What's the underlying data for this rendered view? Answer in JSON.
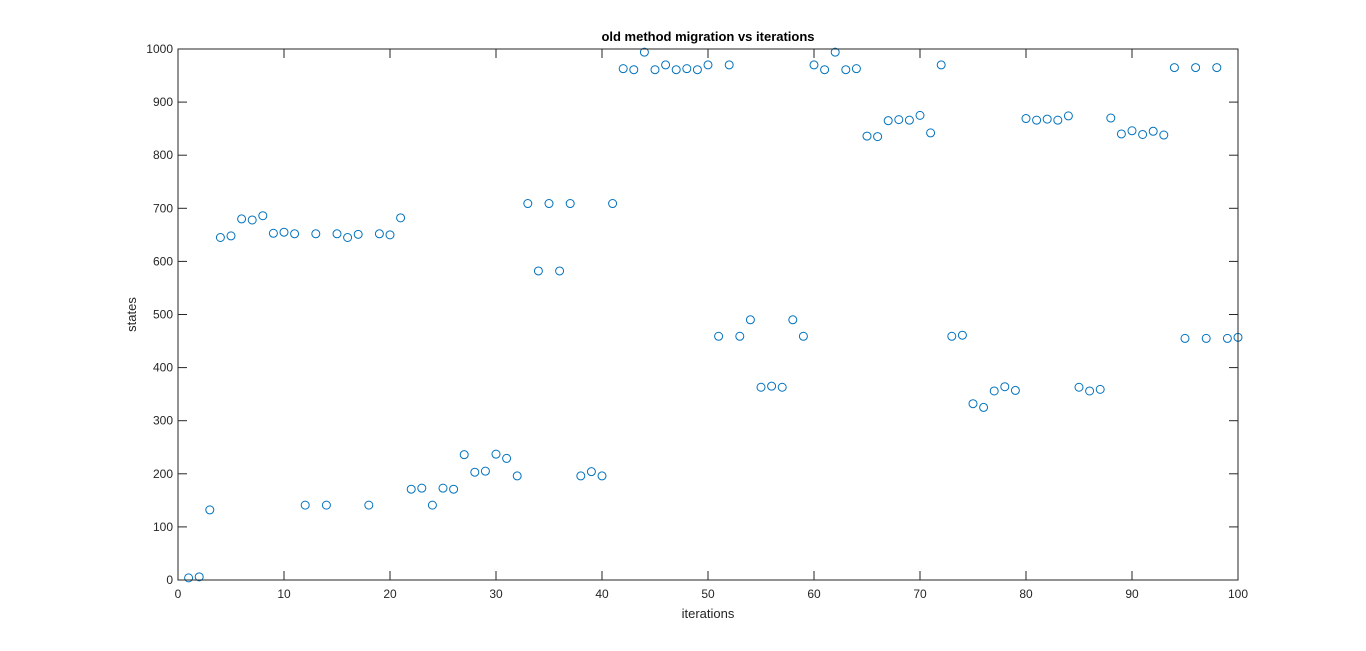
{
  "window": {
    "background": "#ffffff"
  },
  "chart_data": {
    "type": "scatter",
    "title": "old method migration vs iterations",
    "xlabel": "iterations",
    "ylabel": "states",
    "xlim": [
      0,
      100
    ],
    "ylim": [
      0,
      1000
    ],
    "xticks": [
      0,
      10,
      20,
      30,
      40,
      50,
      60,
      70,
      80,
      90,
      100
    ],
    "yticks": [
      0,
      100,
      200,
      300,
      400,
      500,
      600,
      700,
      800,
      900,
      1000
    ],
    "grid": false,
    "legend": "none",
    "marker": "circle-open",
    "marker_color": "#0072BD",
    "box": true,
    "series": [
      {
        "x": [
          1,
          2,
          3,
          4,
          5,
          6,
          7,
          8,
          9,
          10,
          11,
          12,
          13,
          14,
          15,
          16,
          17,
          18,
          19,
          20,
          21,
          22,
          23,
          24,
          25,
          26,
          27,
          28,
          29,
          30,
          31,
          32,
          33,
          34,
          35,
          36,
          37,
          38,
          39,
          40,
          41,
          42,
          43,
          44,
          45,
          46,
          47,
          48,
          49,
          50,
          51,
          52,
          53,
          54,
          55,
          56,
          57,
          58,
          59,
          60,
          61,
          62,
          63,
          64,
          65,
          66,
          67,
          68,
          69,
          70,
          71,
          72,
          73,
          74,
          75,
          76,
          77,
          78,
          79,
          80,
          81,
          82,
          83,
          84,
          85,
          86,
          87,
          88,
          89,
          90,
          91,
          92,
          93,
          94,
          95,
          96,
          97,
          98,
          99,
          100
        ],
        "y": [
          4,
          6,
          132,
          645,
          648,
          680,
          678,
          686,
          653,
          655,
          652,
          141,
          652,
          141,
          652,
          645,
          651,
          141,
          652,
          650,
          682,
          171,
          173,
          141,
          173,
          171,
          236,
          203,
          205,
          237,
          229,
          196,
          709,
          582,
          709,
          582,
          709,
          196,
          204,
          196,
          709,
          963,
          961,
          994,
          961,
          970,
          961,
          963,
          961,
          970,
          459,
          970,
          459,
          490,
          363,
          365,
          363,
          490,
          459,
          970,
          961,
          994,
          961,
          963,
          836,
          835,
          865,
          867,
          866,
          875,
          842,
          970,
          459,
          461,
          332,
          325,
          356,
          364,
          357,
          869,
          866,
          868,
          866,
          874,
          363,
          356,
          359,
          870,
          840,
          846,
          839,
          845,
          838,
          965,
          455,
          965,
          455,
          965,
          455,
          457
        ]
      }
    ]
  }
}
